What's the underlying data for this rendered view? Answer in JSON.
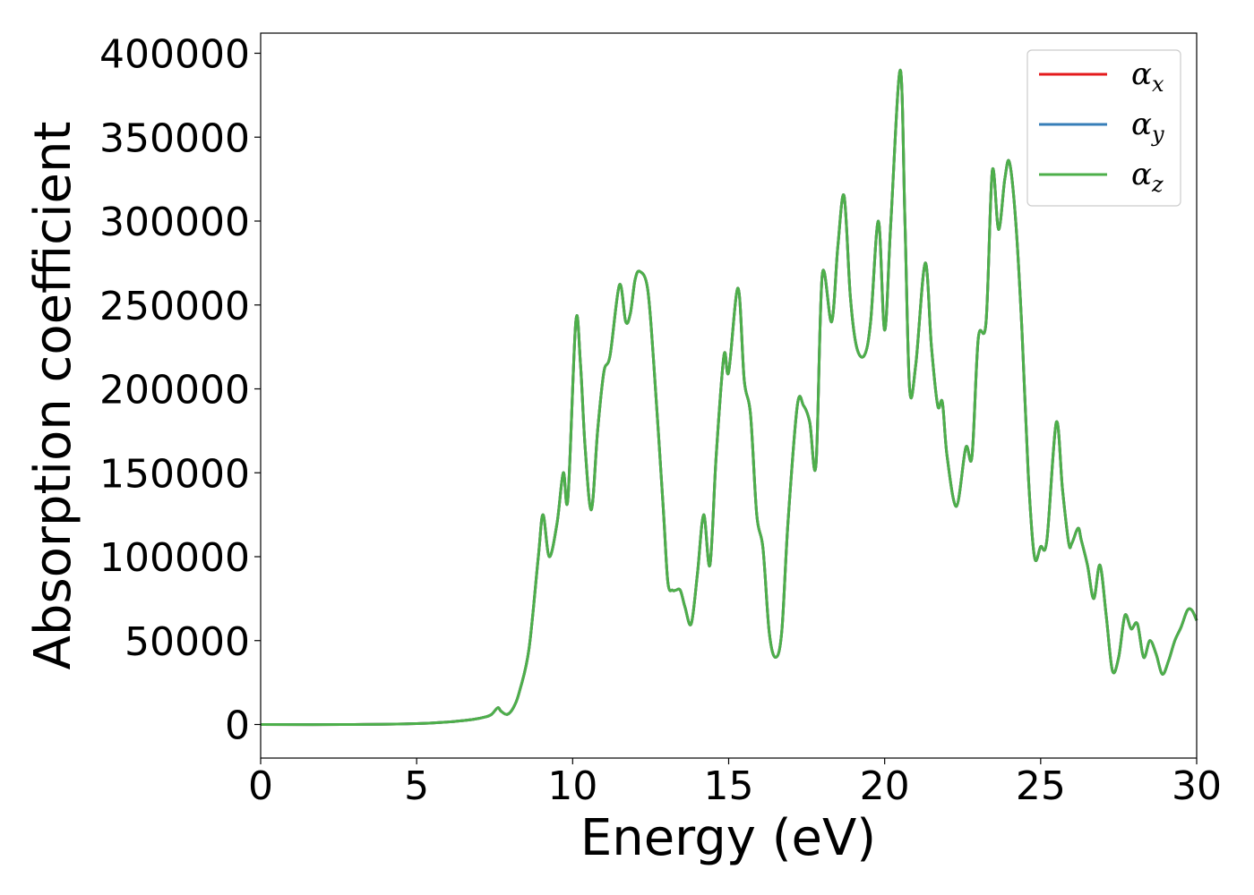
{
  "chart_data": {
    "type": "line",
    "xlabel": "Energy (eV)",
    "ylabel": "Absorption coefficient",
    "xlim": [
      0,
      30
    ],
    "ylim": [
      -20000,
      412000
    ],
    "xticks": [
      0,
      5,
      10,
      15,
      20,
      25,
      30
    ],
    "yticks": [
      0,
      50000,
      100000,
      150000,
      200000,
      250000,
      300000,
      350000,
      400000
    ],
    "grid": false,
    "legend_position": "top-right",
    "series": [
      {
        "name": "α",
        "sub": "x",
        "color": "#e41a1c",
        "ref": "shared"
      },
      {
        "name": "α",
        "sub": "y",
        "color": "#377eb8",
        "ref": "shared"
      },
      {
        "name": "α",
        "sub": "z",
        "color": "#4daf4a",
        "ref": "shared"
      }
    ],
    "shared_values": {
      "x": [
        0,
        3,
        5,
        6,
        6.8,
        7.2,
        7.4,
        7.6,
        7.7,
        7.9,
        8.1,
        8.3,
        8.6,
        8.9,
        9.05,
        9.25,
        9.5,
        9.7,
        9.85,
        10.1,
        10.25,
        10.4,
        10.6,
        10.8,
        11.0,
        11.2,
        11.5,
        11.7,
        11.85,
        12.0,
        12.15,
        12.4,
        12.6,
        12.9,
        13.05,
        13.2,
        13.3,
        13.45,
        13.6,
        13.8,
        14.0,
        14.2,
        14.4,
        14.6,
        14.85,
        15.0,
        15.3,
        15.5,
        15.7,
        15.9,
        16.1,
        16.3,
        16.5,
        16.7,
        16.9,
        17.2,
        17.4,
        17.6,
        17.8,
        18.0,
        18.3,
        18.5,
        18.7,
        18.9,
        19.1,
        19.35,
        19.55,
        19.8,
        20.0,
        20.2,
        20.5,
        20.65,
        20.8,
        21.0,
        21.3,
        21.5,
        21.7,
        21.85,
        22.0,
        22.3,
        22.6,
        22.8,
        23.0,
        23.25,
        23.45,
        23.65,
        23.85,
        24.0,
        24.2,
        24.4,
        24.6,
        24.8,
        25.0,
        25.2,
        25.5,
        25.7,
        25.9,
        26.0,
        26.2,
        26.3,
        26.5,
        26.7,
        26.9,
        27.1,
        27.3,
        27.5,
        27.7,
        27.9,
        28.1,
        28.3,
        28.5,
        28.7,
        28.9,
        29.1,
        29.3,
        29.5,
        29.7,
        29.85,
        30.0
      ],
      "y": [
        0,
        0,
        500,
        1500,
        3000,
        4500,
        6000,
        10000,
        8000,
        6000,
        10000,
        20000,
        45000,
        100000,
        125000,
        100000,
        120000,
        150000,
        135000,
        240000,
        215000,
        165000,
        128000,
        175000,
        210000,
        220000,
        262000,
        240000,
        245000,
        265000,
        270000,
        260000,
        215000,
        130000,
        85000,
        80000,
        80000,
        80000,
        70000,
        60000,
        90000,
        125000,
        95000,
        160000,
        220000,
        210000,
        260000,
        205000,
        185000,
        125000,
        105000,
        55000,
        40000,
        55000,
        120000,
        190000,
        190000,
        180000,
        155000,
        268000,
        240000,
        285000,
        315000,
        255000,
        225000,
        220000,
        240000,
        300000,
        235000,
        300000,
        390000,
        300000,
        200000,
        215000,
        275000,
        225000,
        190000,
        192000,
        160000,
        130000,
        165000,
        160000,
        230000,
        240000,
        330000,
        295000,
        325000,
        335000,
        300000,
        235000,
        150000,
        100000,
        106000,
        110000,
        180000,
        140000,
        108000,
        108000,
        117000,
        110000,
        95000,
        75000,
        95000,
        65000,
        32000,
        40000,
        65000,
        57000,
        60000,
        40000,
        50000,
        42000,
        30000,
        38000,
        50000,
        58000,
        68000,
        68000,
        62000
      ]
    }
  }
}
